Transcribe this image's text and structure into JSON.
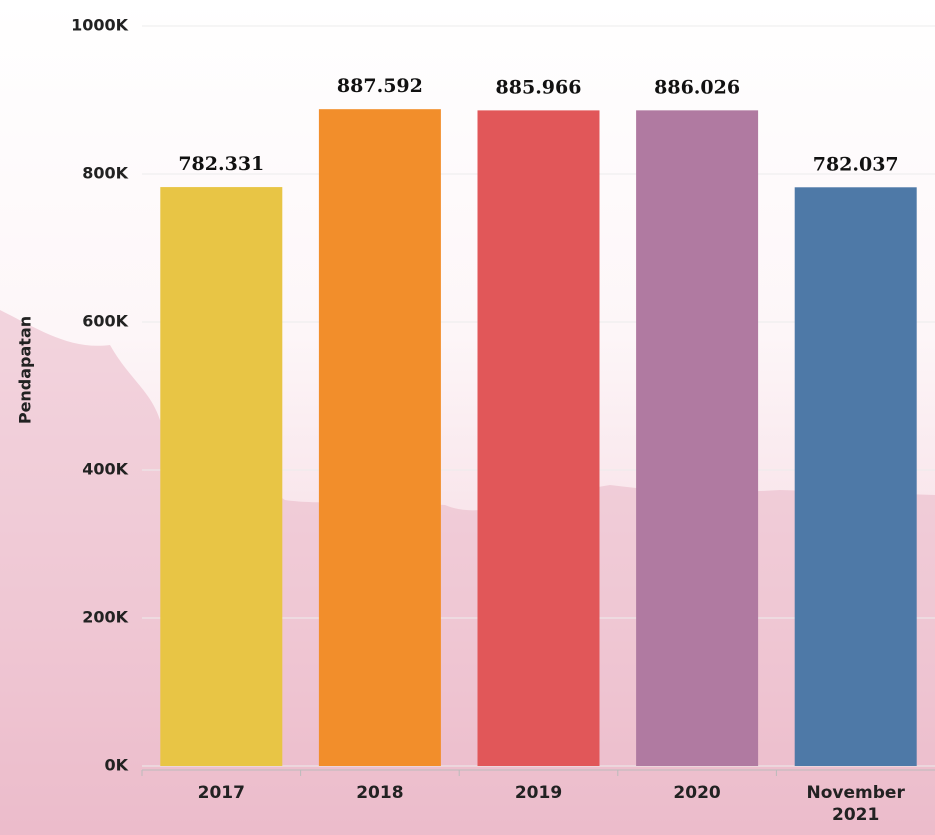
{
  "chart_data": {
    "type": "bar",
    "y_label": "Pendapatan",
    "categories": [
      "2017",
      "2018",
      "2019",
      "2020",
      "November 2021"
    ],
    "series": [
      {
        "values": [
          782331,
          887592,
          885966,
          886026,
          782037
        ],
        "value_labels": [
          "782.331",
          "887.592",
          "885.966",
          "886.026",
          "782.037"
        ],
        "colors": [
          "#e8c545",
          "#f28e2b",
          "#e15759",
          "#b07aa1",
          "#4e79a7"
        ]
      }
    ],
    "ylim": [
      0,
      1000000
    ],
    "yticks": [
      {
        "value": 0,
        "label": "0K"
      },
      {
        "value": 200000,
        "label": "200K"
      },
      {
        "value": 400000,
        "label": "400K"
      },
      {
        "value": 600000,
        "label": "600K"
      },
      {
        "value": 800000,
        "label": "800K"
      },
      {
        "value": 1000000,
        "label": "1000K"
      }
    ],
    "grid": true
  }
}
